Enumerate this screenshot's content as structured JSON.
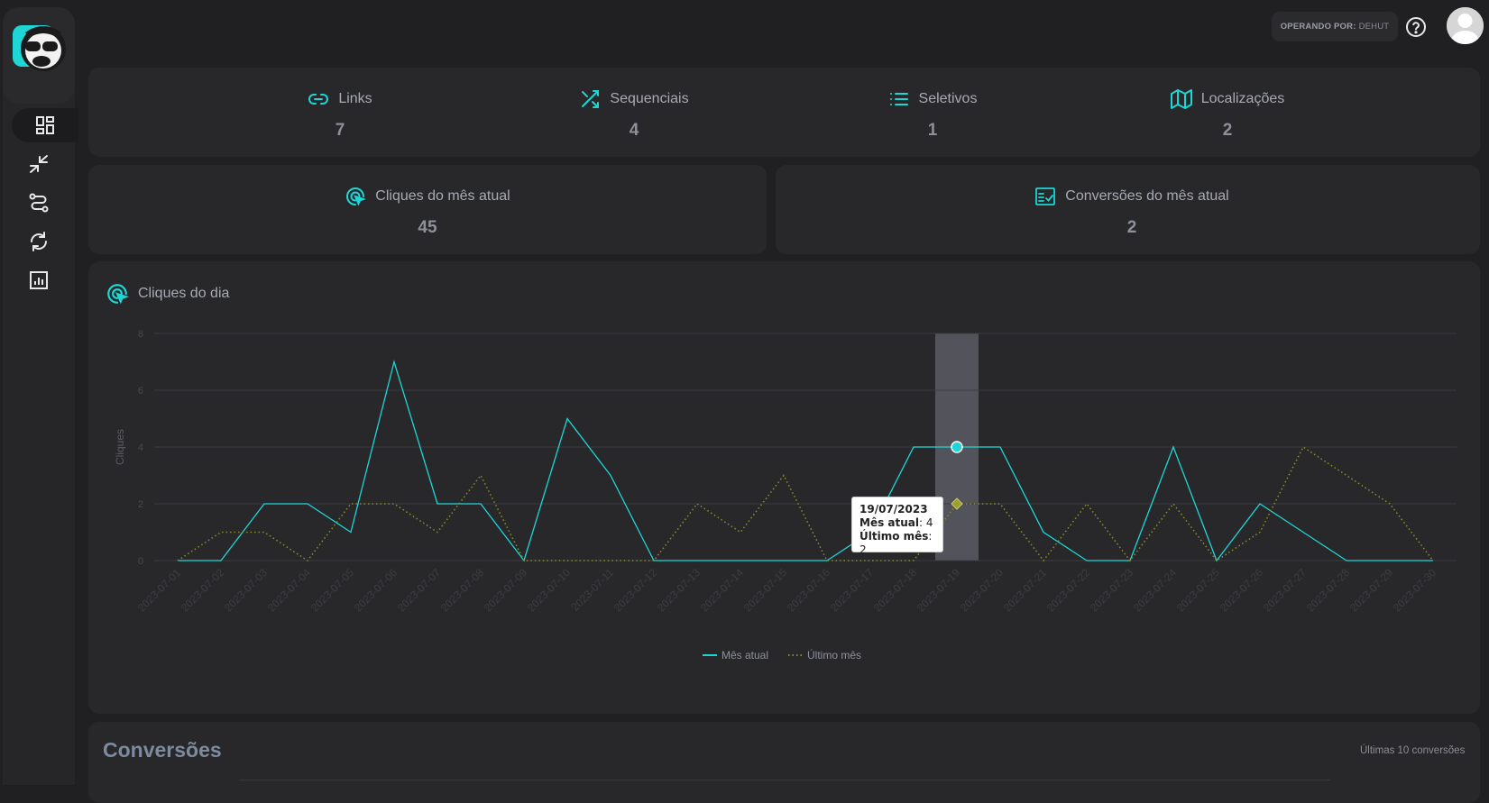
{
  "topbar": {
    "operator_label": "OPERANDO POR:",
    "operator_name": "DEHUT"
  },
  "sidebar": {
    "items": [
      {
        "icon": "dashboard-icon",
        "active": true
      },
      {
        "icon": "compress-arrows-icon",
        "active": false
      },
      {
        "icon": "route-icon",
        "active": false
      },
      {
        "icon": "sync-icon",
        "active": false
      },
      {
        "icon": "report-chart-icon",
        "active": false
      }
    ]
  },
  "stats": {
    "links": {
      "label": "Links",
      "value": "7"
    },
    "sequenciais": {
      "label": "Sequenciais",
      "value": "4"
    },
    "seletivos": {
      "label": "Seletivos",
      "value": "1"
    },
    "localizacoes": {
      "label": "Localizações",
      "value": "2"
    },
    "cliques_mes": {
      "label": "Cliques do mês atual",
      "value": "45"
    },
    "conversoes_mes": {
      "label": "Conversões do mês atual",
      "value": "2"
    }
  },
  "chart": {
    "title": "Cliques do dia",
    "tooltip": {
      "date": "19/07/2023",
      "current_label": "Mês atual",
      "current_value": "4",
      "last_label": "Último mês",
      "last_value": "2"
    }
  },
  "chart_data": {
    "type": "line",
    "ylabel": "Cliques",
    "ylim": [
      0,
      8
    ],
    "yticks": [
      "0",
      "2",
      "4",
      "6",
      "8"
    ],
    "categories": [
      "2023-07-01",
      "2023-07-02",
      "2023-07-03",
      "2023-07-04",
      "2023-07-05",
      "2023-07-06",
      "2023-07-07",
      "2023-07-08",
      "2023-07-09",
      "2023-07-10",
      "2023-07-11",
      "2023-07-12",
      "2023-07-13",
      "2023-07-14",
      "2023-07-15",
      "2023-07-16",
      "2023-07-17",
      "2023-07-18",
      "2023-07-19",
      "2023-07-20",
      "2023-07-21",
      "2023-07-22",
      "2023-07-23",
      "2023-07-24",
      "2023-07-25",
      "2023-07-26",
      "2023-07-27",
      "2023-07-28",
      "2023-07-29",
      "2023-07-30"
    ],
    "series": [
      {
        "name": "Mês atual",
        "color": "#1ed6d6",
        "style": "solid",
        "values": [
          0,
          0,
          2,
          2,
          1,
          7,
          2,
          2,
          0,
          5,
          3,
          0,
          0,
          0,
          0,
          0,
          1,
          4,
          4,
          4,
          1,
          0,
          0,
          4,
          0,
          2,
          1,
          0,
          0,
          0
        ]
      },
      {
        "name": "Último mês",
        "color": "#8a8a2a",
        "style": "dotted",
        "values": [
          0,
          1,
          1,
          0,
          2,
          2,
          1,
          3,
          0,
          0,
          0,
          0,
          2,
          1,
          3,
          0,
          0,
          0,
          2,
          2,
          0,
          2,
          0,
          2,
          0,
          1,
          4,
          3,
          2,
          0
        ]
      }
    ],
    "highlight_index": 18,
    "legend_position": "bottom"
  },
  "conversions": {
    "title": "Conversões",
    "subtitle": "Últimas 10 conversões"
  }
}
